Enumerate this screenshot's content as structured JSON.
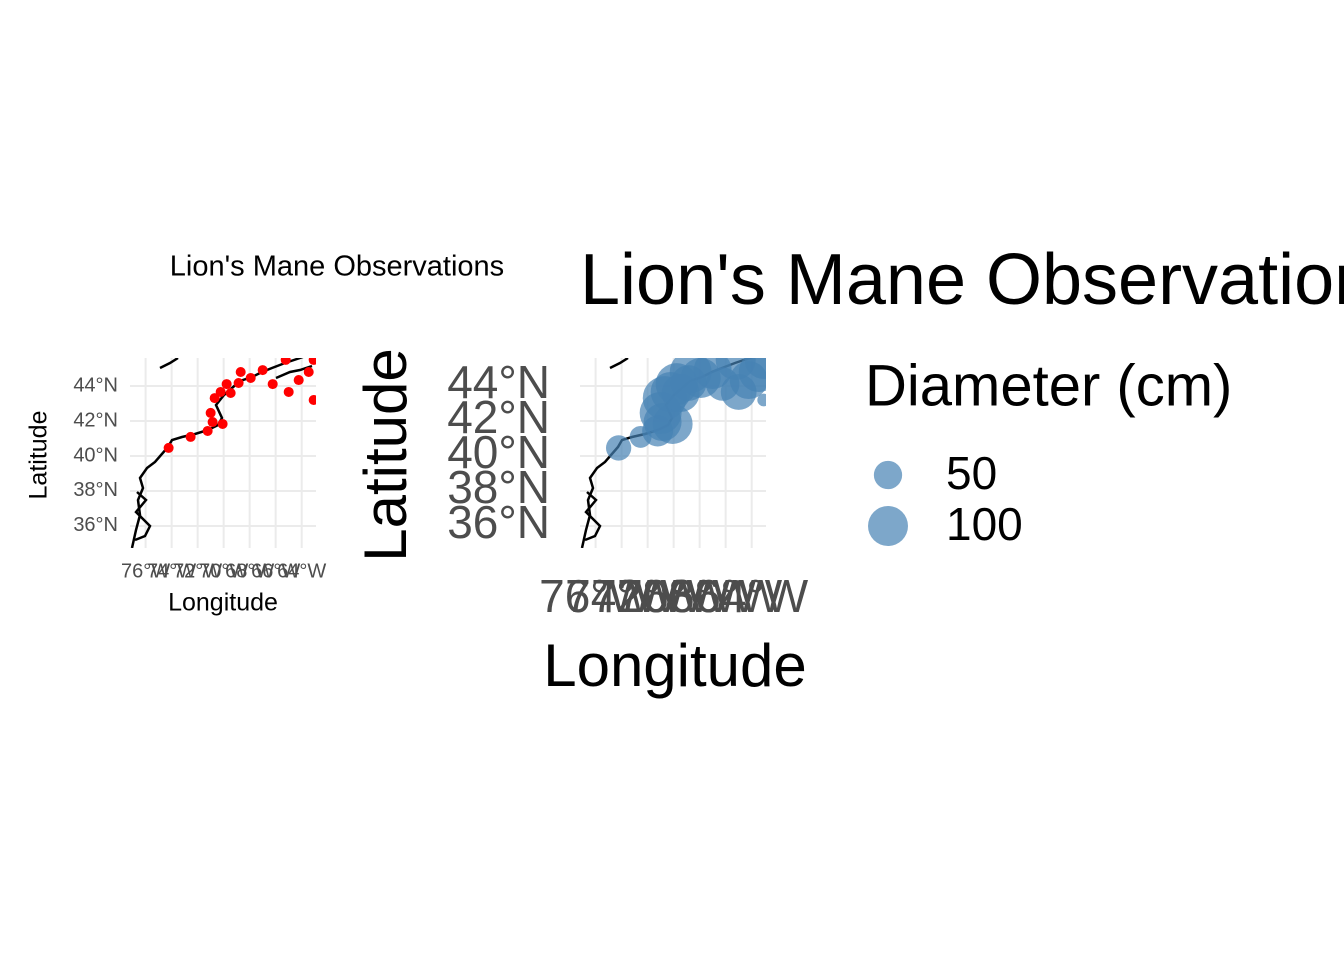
{
  "chart_data": [
    {
      "type": "scatter",
      "title": "Lion's Mane Observations",
      "x_label": "Longitude",
      "y_label": "Latitude",
      "xlim": [
        -77.2,
        -62.9
      ],
      "ylim": [
        34.74,
        45.6
      ],
      "xticks": [
        {
          "value": -76,
          "label": "76°W"
        },
        {
          "value": -74,
          "label": "74°W"
        },
        {
          "value": -72,
          "label": "72°W"
        },
        {
          "value": -70,
          "label": "70°W"
        },
        {
          "value": -68,
          "label": "68°W"
        },
        {
          "value": -66,
          "label": "66°W"
        },
        {
          "value": -64,
          "label": "64°W"
        }
      ],
      "yticks": [
        {
          "value": 36,
          "label": "36°N"
        },
        {
          "value": 38,
          "label": "38°N"
        },
        {
          "value": 40,
          "label": "40°N"
        },
        {
          "value": 42,
          "label": "42°N"
        },
        {
          "value": 44,
          "label": "44°N"
        }
      ],
      "grid": true,
      "color": "red",
      "x": [
        -74.23,
        -72.54,
        -71.23,
        -70.85,
        -70.08,
        -71.0,
        -70.69,
        -70.23,
        -69.46,
        -68.85,
        -68.69,
        -67.92,
        -67.0,
        -66.23,
        -65.0,
        -64.23,
        -63.46,
        -63.08,
        -65.23,
        -63.08,
        -69.77
      ],
      "y": [
        40.46,
        41.09,
        41.43,
        41.94,
        41.83,
        42.46,
        43.31,
        43.66,
        43.6,
        44.17,
        44.8,
        44.46,
        44.91,
        44.11,
        43.66,
        44.34,
        44.8,
        43.2,
        45.49,
        45.49,
        44.11
      ]
    },
    {
      "type": "bubble",
      "title": "Lion's Mane Observations",
      "x_label": "Longitude",
      "y_label": "Latitude",
      "xlim": [
        -77.2,
        -62.9
      ],
      "ylim": [
        34.74,
        45.6
      ],
      "xticks": [
        {
          "value": -76,
          "label": "76°W"
        },
        {
          "value": -74,
          "label": "74°W"
        },
        {
          "value": -72,
          "label": "72°W"
        },
        {
          "value": -70,
          "label": "70°W"
        },
        {
          "value": -68,
          "label": "68°W"
        },
        {
          "value": -66,
          "label": "66°W"
        },
        {
          "value": -64,
          "label": "64°W"
        }
      ],
      "yticks": [
        {
          "value": 36,
          "label": "36°N"
        },
        {
          "value": 38,
          "label": "38°N"
        },
        {
          "value": 40,
          "label": "40°N"
        },
        {
          "value": 42,
          "label": "42°N"
        },
        {
          "value": 44,
          "label": "44°N"
        }
      ],
      "grid": true,
      "color": "#4682b4",
      "x": [
        -74.23,
        -72.54,
        -71.23,
        -70.85,
        -70.08,
        -71.0,
        -70.69,
        -70.23,
        -69.46,
        -68.85,
        -68.69,
        -67.92,
        -67.0,
        -66.23,
        -65.0,
        -64.23,
        -63.46,
        -63.08,
        -65.23,
        -63.08,
        -69.77
      ],
      "y": [
        40.46,
        41.09,
        41.43,
        41.94,
        41.83,
        42.46,
        43.31,
        43.66,
        43.6,
        44.17,
        44.8,
        44.46,
        44.91,
        44.11,
        43.66,
        44.34,
        44.8,
        43.2,
        45.49,
        45.49,
        44.11
      ],
      "sizes": [
        40,
        30,
        60,
        90,
        100,
        110,
        120,
        100,
        90,
        80,
        110,
        100,
        90,
        70,
        80,
        90,
        100,
        10,
        100,
        90,
        110
      ],
      "size_legend": {
        "title": "Diameter (cm)",
        "values": [
          50,
          100
        ]
      }
    }
  ]
}
